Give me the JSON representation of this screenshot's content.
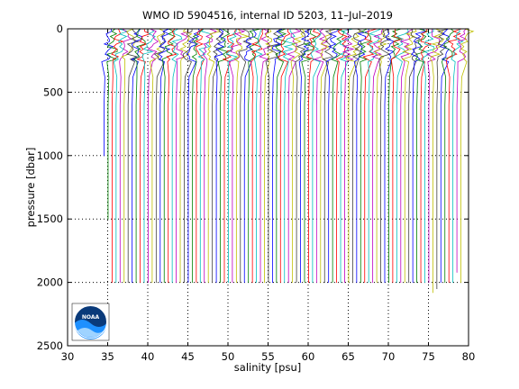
{
  "chart_data": {
    "type": "line",
    "title": "WMO ID 5904516, internal ID 5203, 11–Jul–2019",
    "xlabel": "salinity [psu]",
    "ylabel": "pressure [dbar]",
    "xlim": [
      30,
      80
    ],
    "ylim": [
      0,
      2500
    ],
    "y_reversed": true,
    "grid": true,
    "xticks": [
      30,
      35,
      40,
      45,
      50,
      55,
      60,
      65,
      70,
      75,
      80
    ],
    "yticks": [
      0,
      500,
      1000,
      1500,
      2000,
      2500
    ],
    "profile_offset_step": 0.5,
    "profile_base_start": 34.55,
    "deep_pressures": [
      1000,
      1500,
      2000,
      2000,
      2000,
      2000,
      2000,
      2000,
      2000,
      2000,
      2000,
      2000,
      2000,
      2000,
      2000,
      2000,
      2000,
      2000,
      2000,
      2000,
      2000,
      2000,
      2000,
      2000,
      2000,
      2000,
      2000,
      2000,
      2000,
      2000,
      2000,
      2000,
      2000,
      2000,
      2000,
      2000,
      2000,
      2000,
      2000,
      2000,
      2000,
      2000,
      2000,
      2000,
      2000,
      2000,
      2000,
      2000,
      2000,
      2000,
      2000,
      2000,
      2000,
      2000,
      2000,
      2000,
      2000,
      2000,
      2000,
      2000,
      2000,
      2000,
      2000,
      2000,
      2000,
      2000,
      2000,
      2000,
      2000,
      2000,
      2000,
      2000,
      2000,
      2000,
      2000,
      2000,
      2000,
      2000,
      2000,
      2000,
      2000,
      2000,
      2080,
      2050,
      2000,
      2000,
      2000,
      2000,
      1920,
      2000
    ],
    "colors": [
      "#0000ff",
      "#008000",
      "#ff0000",
      "#00bfbf",
      "#bf00bf",
      "#bfbf00",
      "#404040"
    ]
  },
  "logo": {
    "text": "NOAA"
  }
}
